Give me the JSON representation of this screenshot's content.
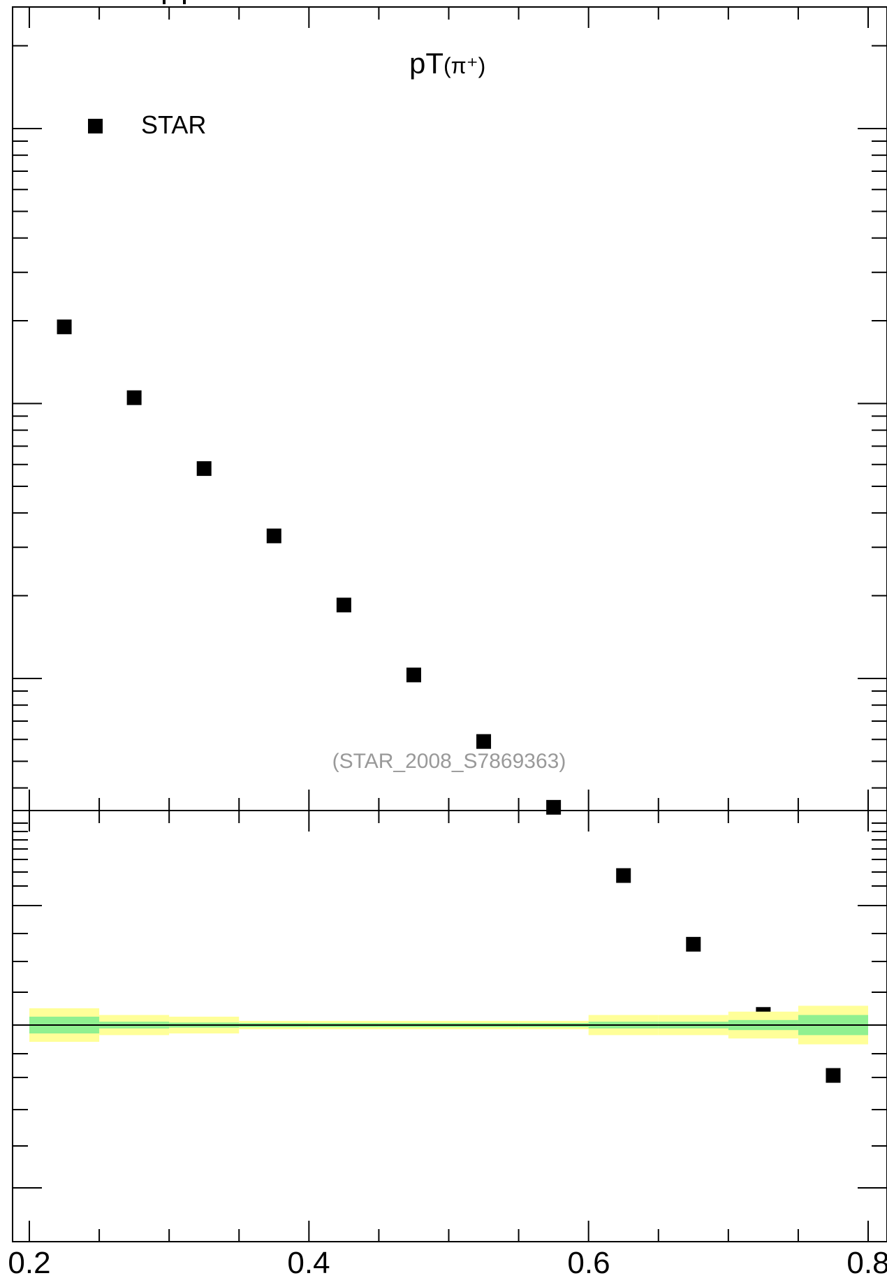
{
  "chart_data": {
    "type": "scatter",
    "title": "pT",
    "title_particle": "(π⁺)",
    "watermark": "(STAR_2008_S7869363)",
    "legend": {
      "label": "STAR",
      "placement": "top-left",
      "marker": "square"
    },
    "xlim": [
      0.2,
      0.8
    ],
    "x_ticks": [
      "0.2",
      "0.4",
      "0.6",
      "0.8"
    ],
    "y_scale": "log",
    "ylim": [
      0.0001,
      1.0
    ],
    "series": [
      {
        "name": "STAR",
        "x": [
          0.225,
          0.275,
          0.325,
          0.375,
          0.425,
          0.475,
          0.525,
          0.575,
          0.625,
          0.675,
          0.725,
          0.775
        ],
        "y": [
          0.19,
          0.105,
          0.058,
          0.033,
          0.0185,
          0.0103,
          0.0059,
          0.0034,
          0.00192,
          0.00108,
          0.0006,
          0.00036
        ]
      }
    ],
    "ratio_panel": {
      "reference": 1.0,
      "ylim": [
        0.5,
        1.5
      ],
      "bins": [
        {
          "lo": 0.2,
          "hi": 0.25,
          "stat": 0.02,
          "total": 0.04
        },
        {
          "lo": 0.25,
          "hi": 0.3,
          "stat": 0.008,
          "total": 0.024
        },
        {
          "lo": 0.3,
          "hi": 0.35,
          "stat": 0.006,
          "total": 0.02
        },
        {
          "lo": 0.35,
          "hi": 0.4,
          "stat": 0.005,
          "total": 0.01
        },
        {
          "lo": 0.4,
          "hi": 0.45,
          "stat": 0.005,
          "total": 0.01
        },
        {
          "lo": 0.45,
          "hi": 0.5,
          "stat": 0.005,
          "total": 0.01
        },
        {
          "lo": 0.5,
          "hi": 0.55,
          "stat": 0.005,
          "total": 0.01
        },
        {
          "lo": 0.55,
          "hi": 0.6,
          "stat": 0.005,
          "total": 0.01
        },
        {
          "lo": 0.6,
          "hi": 0.65,
          "stat": 0.008,
          "total": 0.024
        },
        {
          "lo": 0.65,
          "hi": 0.7,
          "stat": 0.008,
          "total": 0.024
        },
        {
          "lo": 0.7,
          "hi": 0.75,
          "stat": 0.012,
          "total": 0.032
        },
        {
          "lo": 0.75,
          "hi": 0.8,
          "stat": 0.024,
          "total": 0.046
        }
      ]
    },
    "colors": {
      "stat_band": "#90f090",
      "total_band": "#ffff99",
      "marker": "#000000",
      "watermark": "#999999"
    }
  }
}
